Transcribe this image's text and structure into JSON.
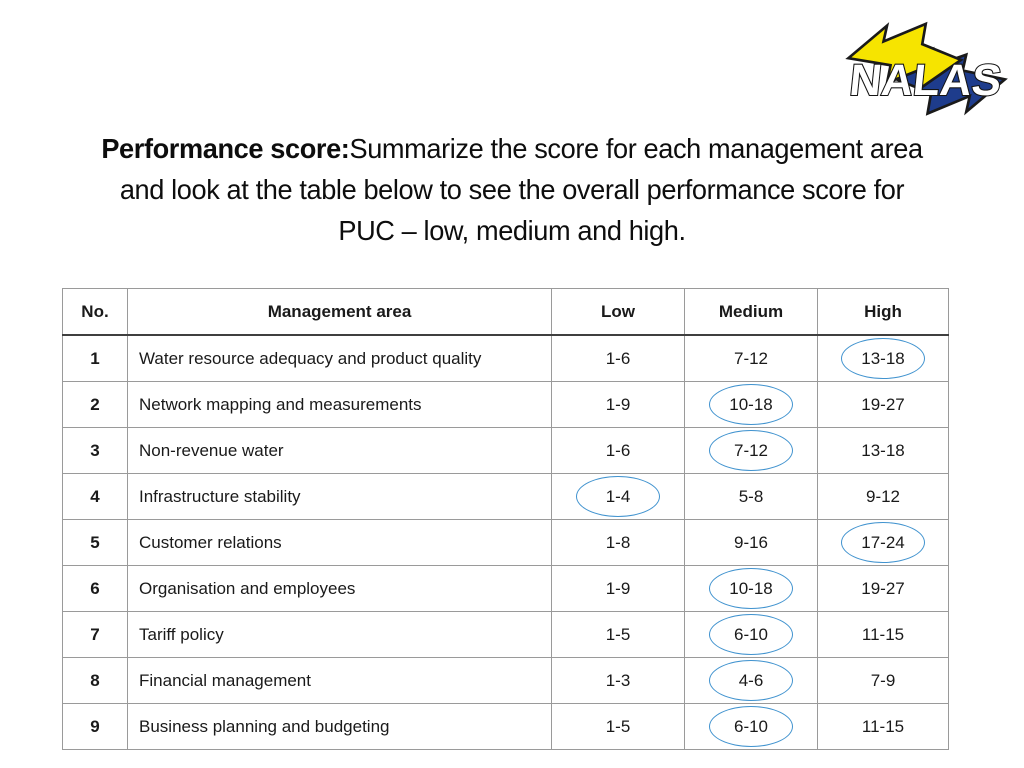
{
  "logo": {
    "text": "NALAS",
    "colors": {
      "yellow": "#F6E400",
      "navy": "#1E3C8C",
      "outline": "#1A1A1A"
    }
  },
  "title": {
    "bold_prefix": "Performance score:",
    "line1_rest": "Summarize the score for each management area",
    "line2": "and look at the table below to see the overall performance score for",
    "line3": "PUC – low, medium and high."
  },
  "table": {
    "headers": [
      "No.",
      "Management area",
      "Low",
      "Medium",
      "High"
    ],
    "highlight_color": "#4193CF",
    "rows": [
      {
        "no": "1",
        "area": "Water resource adequacy and product quality",
        "low": "1-6",
        "medium": "7-12",
        "high": "13-18",
        "circled": "high"
      },
      {
        "no": "2",
        "area": "Network mapping and measurements",
        "low": "1-9",
        "medium": "10-18",
        "high": "19-27",
        "circled": "medium"
      },
      {
        "no": "3",
        "area": "Non-revenue water",
        "low": "1-6",
        "medium": "7-12",
        "high": "13-18",
        "circled": "medium"
      },
      {
        "no": "4",
        "area": "Infrastructure stability",
        "low": "1-4",
        "medium": "5-8",
        "high": "9-12",
        "circled": "low"
      },
      {
        "no": "5",
        "area": "Customer relations",
        "low": "1-8",
        "medium": "9-16",
        "high": "17-24",
        "circled": "high"
      },
      {
        "no": "6",
        "area": "Organisation and employees",
        "low": "1-9",
        "medium": "10-18",
        "high": "19-27",
        "circled": "medium"
      },
      {
        "no": "7",
        "area": "Tariff policy",
        "low": "1-5",
        "medium": "6-10",
        "high": "11-15",
        "circled": "medium"
      },
      {
        "no": "8",
        "area": "Financial management",
        "low": "1-3",
        "medium": "4-6",
        "high": "7-9",
        "circled": "medium"
      },
      {
        "no": "9",
        "area": "Business planning and budgeting",
        "low": "1-5",
        "medium": "6-10",
        "high": "11-15",
        "circled": "medium"
      }
    ]
  }
}
